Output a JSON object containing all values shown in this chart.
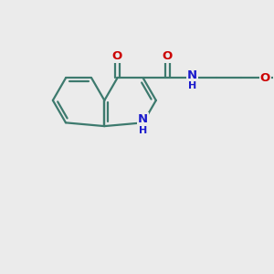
{
  "bg_color": "#ebebeb",
  "bond_color": "#3d7a6e",
  "N_color": "#1a1acc",
  "O_color": "#cc0000",
  "line_width": 1.6,
  "font_size_atom": 9.5,
  "fig_width": 3.0,
  "fig_height": 3.0,
  "xlim": [
    0,
    10
  ],
  "ylim": [
    0,
    10
  ]
}
